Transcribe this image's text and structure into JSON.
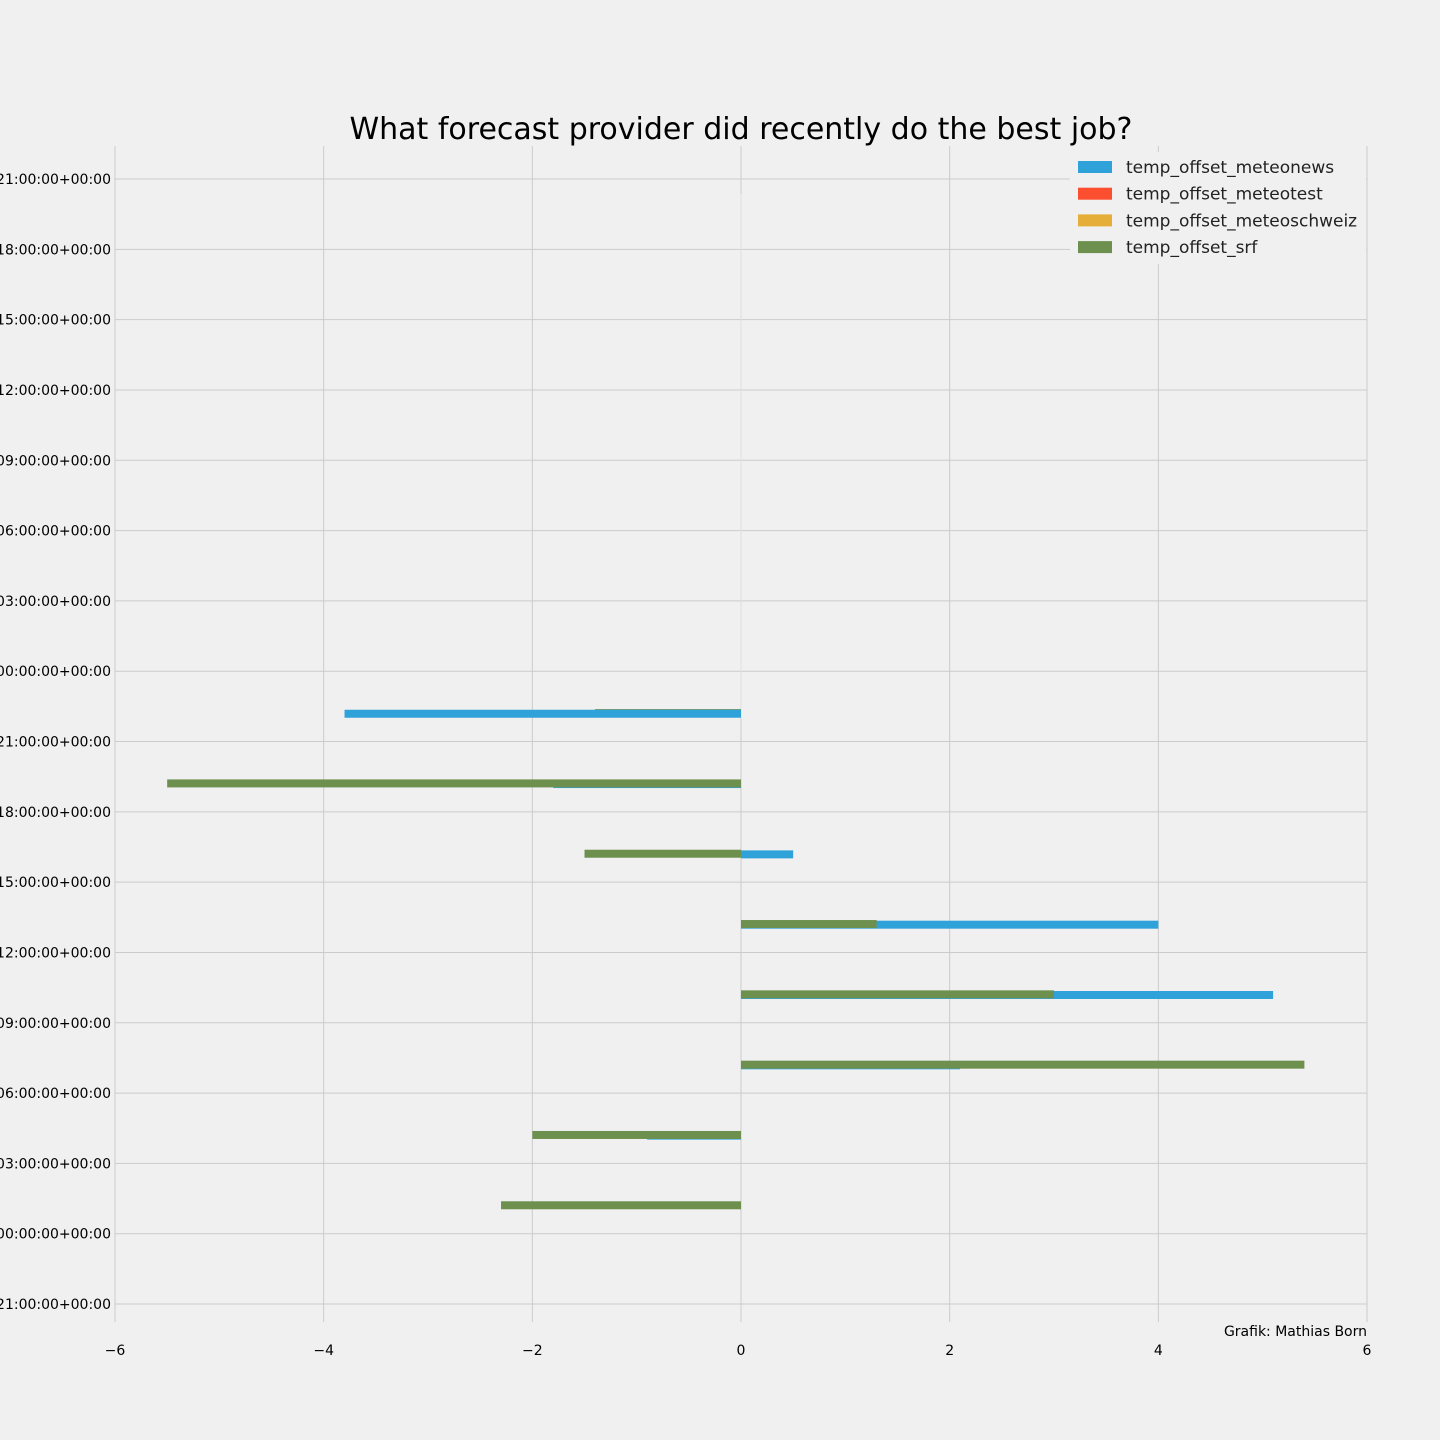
{
  "chart_data": {
    "type": "bar",
    "orientation": "horizontal",
    "title": "What forecast provider did recently do the best job?",
    "credit": "Grafik: Mathias Born",
    "xlim": [
      -6,
      6
    ],
    "x_ticks": [
      {
        "value": -6,
        "label": "−6"
      },
      {
        "value": -4,
        "label": "−4"
      },
      {
        "value": -2,
        "label": "−2"
      },
      {
        "value": 0,
        "label": "0"
      },
      {
        "value": 2,
        "label": "2"
      },
      {
        "value": 4,
        "label": "4"
      },
      {
        "value": 6,
        "label": "6"
      }
    ],
    "y_ticks": [
      {
        "hour": 0,
        "label": "21:00:00+00:00"
      },
      {
        "hour": 3,
        "label": "00:00:00+00:00"
      },
      {
        "hour": 6,
        "label": "03:00:00+00:00"
      },
      {
        "hour": 9,
        "label": "06:00:00+00:00"
      },
      {
        "hour": 12,
        "label": "09:00:00+00:00"
      },
      {
        "hour": 15,
        "label": "12:00:00+00:00"
      },
      {
        "hour": 18,
        "label": "15:00:00+00:00"
      },
      {
        "hour": 21,
        "label": "18:00:00+00:00"
      },
      {
        "hour": 24,
        "label": "21:00:00+00:00"
      },
      {
        "hour": 27,
        "label": "00:00:00+00:00"
      },
      {
        "hour": 30,
        "label": "03:00:00+00:00"
      },
      {
        "hour": 33,
        "label": "06:00:00+00:00"
      },
      {
        "hour": 36,
        "label": "09:00:00+00:00"
      },
      {
        "hour": 39,
        "label": "12:00:00+00:00"
      },
      {
        "hour": 42,
        "label": "15:00:00+00:00"
      },
      {
        "hour": 45,
        "label": "18:00:00+00:00"
      },
      {
        "hour": 48,
        "label": "21:00:00+00:00"
      }
    ],
    "ylim": [
      -0.5,
      48.5
    ],
    "grid": true,
    "legend_position": "top-right",
    "series": [
      {
        "name": "temp_offset_meteonews",
        "color": "#30a2da",
        "hours": [
          6,
          9,
          12,
          15,
          18,
          21
        ],
        "values": [
          -0.9,
          2.1,
          5.1,
          4.0,
          0.5,
          -1.8
        ]
      },
      {
        "name": "temp_offset_meteotest",
        "color": "#fc4f30",
        "hours": [],
        "values": []
      },
      {
        "name": "temp_offset_meteoschweiz",
        "color": "#e5ae38",
        "hours": [],
        "values": []
      },
      {
        "name": "temp_offset_srf",
        "color": "#6d904f",
        "hours": [
          3,
          6,
          9,
          12,
          15,
          18,
          21,
          24
        ],
        "values": [
          -2.3,
          -2.0,
          5.4,
          3.0,
          1.3,
          -1.5,
          -5.5,
          -1.4
        ]
      }
    ],
    "extra_bars": [
      {
        "series": "temp_offset_meteonews",
        "hour": 24,
        "value": -3.8
      }
    ]
  }
}
